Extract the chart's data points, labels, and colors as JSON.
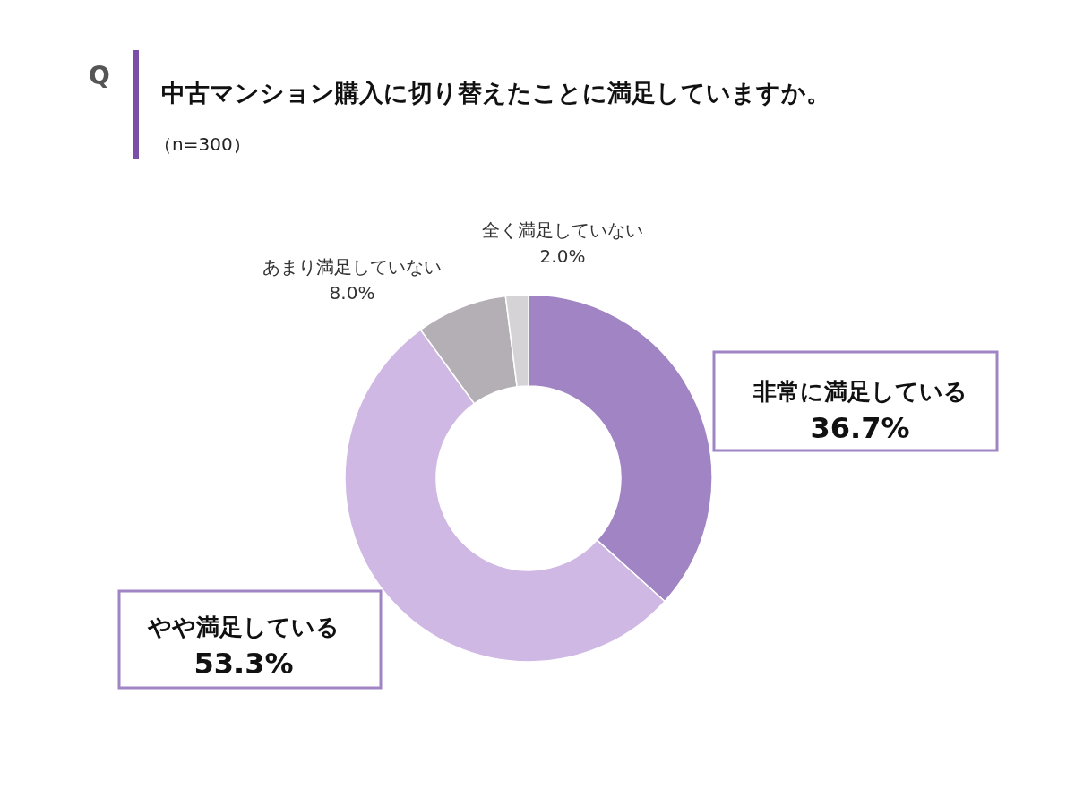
{
  "chart_data": {
    "type": "donut",
    "title": "中古マンション購入に切り替えたことに満足していますか。",
    "subtitle": "（n=300）",
    "annotations": [
      "Q"
    ],
    "categories": [
      "非常に満足している",
      "やや満足している",
      "あまり満足していない",
      "全く満足していない"
    ],
    "values": [
      36.7,
      53.3,
      8.0,
      2.0
    ],
    "colors": [
      "#a084c4",
      "#cfb8e4",
      "#b3afb5",
      "#d5d3d6"
    ],
    "value_labels": [
      "36.7%",
      "53.3%",
      "8.0%",
      "2.0%"
    ]
  }
}
